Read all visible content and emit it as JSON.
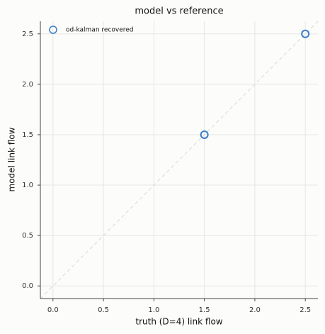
{
  "chart_data": {
    "type": "scatter",
    "title": "model vs reference",
    "xlabel": "truth (D=4) link flow",
    "ylabel": "model link flow",
    "series": [
      {
        "name": "od-kalman recovered",
        "color": "#3a7dc9",
        "x": [
          1.5,
          2.5
        ],
        "values": [
          1.5,
          2.5
        ]
      }
    ],
    "xlim": [
      -0.125,
      2.625
    ],
    "ylim": [
      -0.125,
      2.625
    ],
    "xticks": [
      {
        "value": 0,
        "label": "0.0"
      },
      0.5,
      {
        "value": 1,
        "label": "1.0"
      },
      1.5,
      {
        "value": 2,
        "label": "2.0"
      },
      2.5
    ],
    "yticks": [
      {
        "value": 0,
        "label": "0.0"
      },
      0.5,
      {
        "value": 1,
        "label": "1.0"
      },
      1.5,
      {
        "value": 2,
        "label": "2.0"
      },
      2.5
    ],
    "grid": true,
    "legend": "upper left"
  }
}
